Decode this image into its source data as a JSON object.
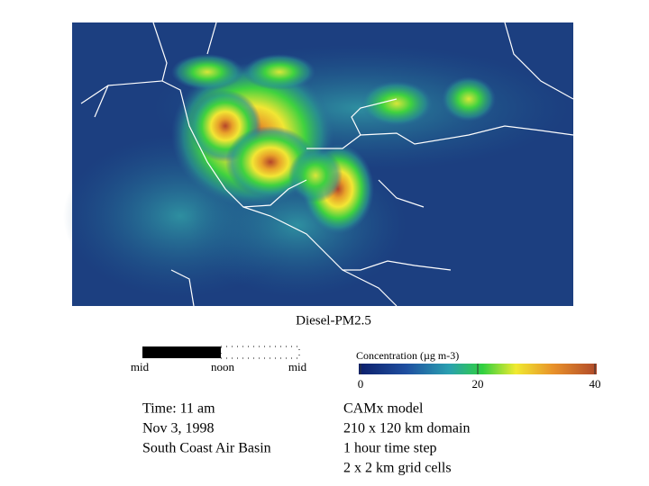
{
  "map": {
    "title": "Diesel-PM2.5"
  },
  "clock": {
    "labels": [
      "mid",
      "noon",
      "mid"
    ]
  },
  "colorbar": {
    "title": "Concentration (µg m-3)",
    "ticks": [
      0,
      20,
      40
    ]
  },
  "info_left": [
    "Time: 11 am",
    "Nov 3, 1998",
    "South Coast Air Basin"
  ],
  "info_right": [
    "CAMx model",
    "210 x 120 km domain",
    "1 hour time step",
    "2 x 2 km grid cells"
  ]
}
